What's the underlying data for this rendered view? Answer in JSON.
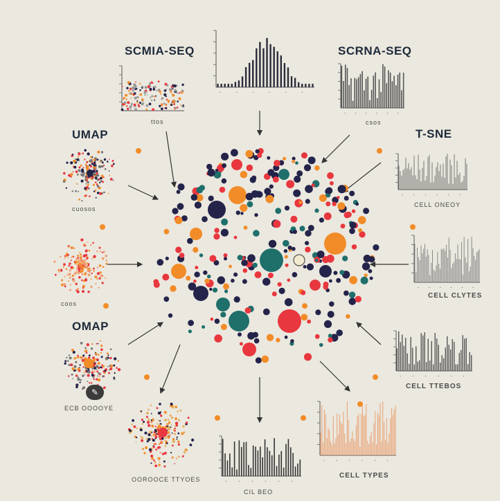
{
  "labels": {
    "top_left": "SCMIA-SEQ",
    "top_right": "SCRNA-SEQ",
    "left_upper": "UMAP",
    "right_upper": "T-SNE",
    "left_lower": "OMAP",
    "right_cell_clyres": "CELL CLYTES",
    "right_cell_ttebos": "CELL TTEBOS",
    "bottom_cell_types": "CELL TYPES",
    "top_left_axis": "ttos",
    "top_right_axis": "csos",
    "umap_axis": "cuosos",
    "mid_left_axis": "coos",
    "tsne_axis": "CELL ONEOY",
    "omap_axis": "ECB OOOOYE",
    "bottom_left_axis": "OOROOCE TTYOES",
    "bottom_center_axis": "CIL BEO"
  },
  "colors": {
    "background": "#ebe8df",
    "navy": "#24234a",
    "orange": "#f28c28",
    "teal": "#1f6f6b",
    "red": "#e8373e",
    "dark": "#1d2a3a",
    "gray_plot": "#6a6a6a"
  },
  "icons": {
    "edit_badge": "magic-wand-icon"
  }
}
